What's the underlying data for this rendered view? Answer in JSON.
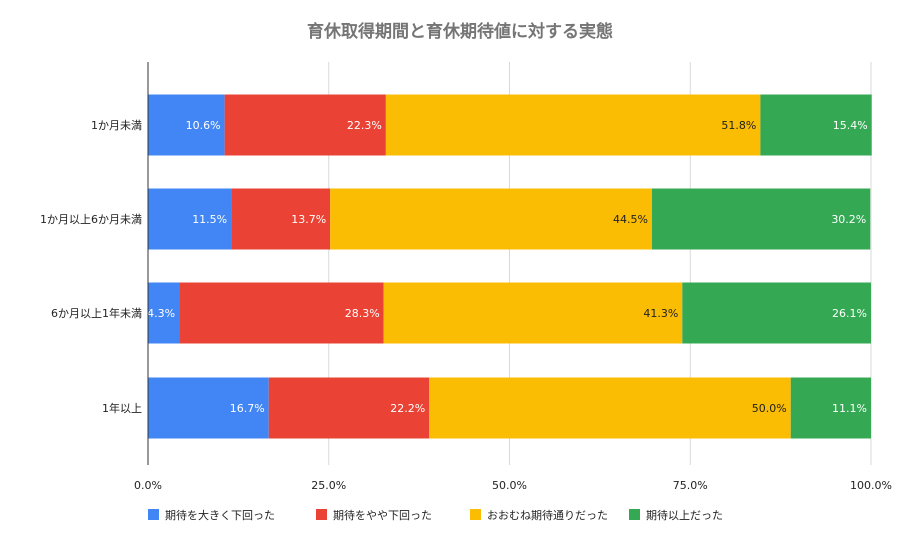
{
  "chart_data": {
    "type": "bar",
    "orientation": "horizontal",
    "stacked": true,
    "title": "育休取得期間と育休期待値に対する実態",
    "categories": [
      "1か月未満",
      "1か月以上6か月未満",
      "6か月以上1年未満",
      "1年以上"
    ],
    "series": [
      {
        "name": "期待を大きく下回った",
        "color": "#4285f4",
        "label_color": "#ffffff",
        "values": [
          10.6,
          11.5,
          4.3,
          16.7
        ]
      },
      {
        "name": "期待をやや下回った",
        "color": "#ea4335",
        "label_color": "#ffffff",
        "values": [
          22.3,
          13.7,
          28.3,
          22.2
        ]
      },
      {
        "name": "おおむね期待通りだった",
        "color": "#fbbc04",
        "label_color": "#222222",
        "values": [
          51.8,
          44.5,
          41.3,
          50.0
        ]
      },
      {
        "name": "期待以上だった",
        "color": "#34a853",
        "label_color": "#ffffff",
        "values": [
          15.4,
          30.2,
          26.1,
          11.1
        ]
      }
    ],
    "xlim": [
      0,
      100
    ],
    "xticks": [
      "0.0%",
      "25.0%",
      "50.0%",
      "75.0%",
      "100.0%"
    ],
    "value_suffix": "%",
    "grid": true,
    "legend_position": "bottom"
  }
}
